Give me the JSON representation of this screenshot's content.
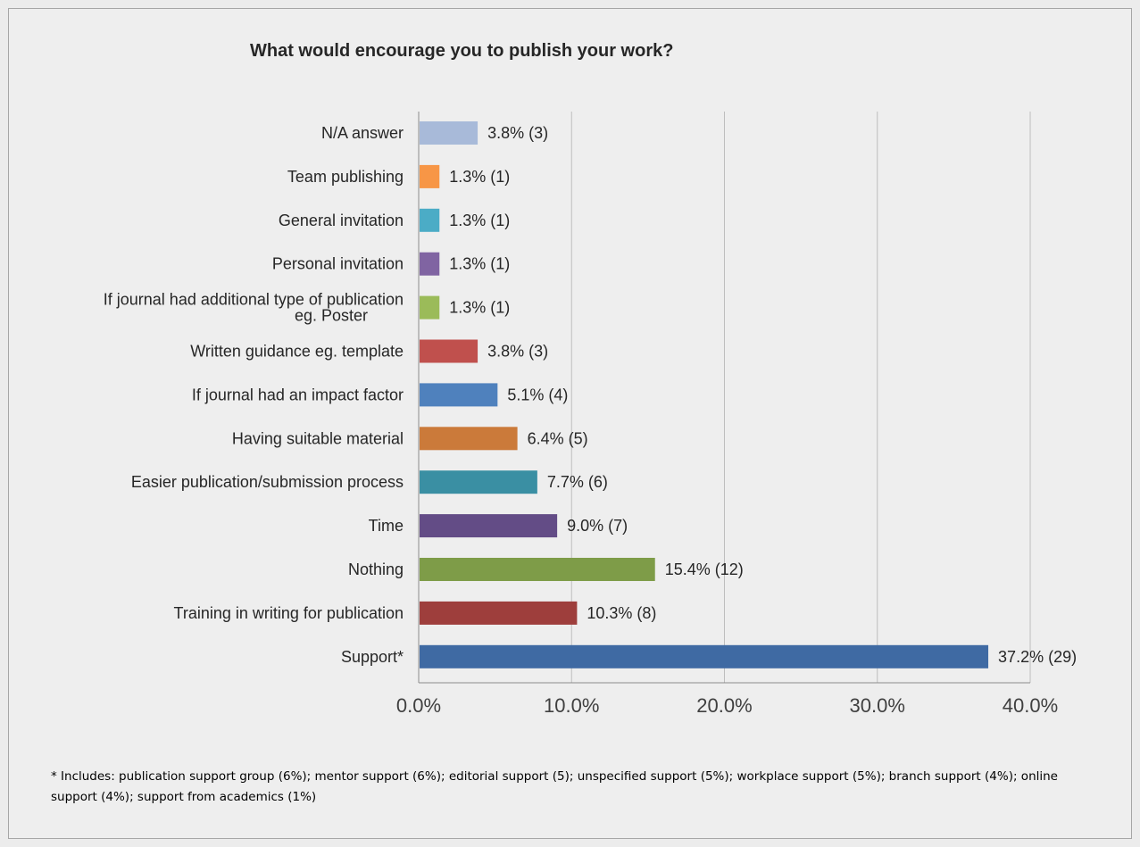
{
  "chart_data": {
    "type": "bar",
    "orientation": "horizontal",
    "title": "What would encourage you to publish your work?",
    "categories": [
      "N/A answer",
      "Team publishing",
      "General invitation",
      "Personal invitation",
      "If journal had additional type of publication eg. Poster",
      "Written guidance eg. template",
      "If journal had an impact factor",
      "Having suitable material",
      "Easier publication/submission process",
      "Time",
      "Nothing",
      "Training in writing for publication",
      "Support*"
    ],
    "values": [
      3.8,
      1.3,
      1.3,
      1.3,
      1.3,
      3.8,
      5.1,
      6.4,
      7.7,
      9.0,
      15.4,
      10.3,
      37.2
    ],
    "counts": [
      3,
      1,
      1,
      1,
      1,
      3,
      4,
      5,
      6,
      7,
      12,
      8,
      29
    ],
    "data_labels": [
      "3.8% (3)",
      "1.3% (1)",
      "1.3% (1)",
      "1.3% (1)",
      "1.3% (1)",
      "3.8% (3)",
      "5.1% (4)",
      "6.4% (5)",
      "7.7% (6)",
      "9.0% (7)",
      "15.4% (12)",
      "10.3% (8)",
      "37.2% (29)"
    ],
    "colors": [
      "#a8bad9",
      "#f79646",
      "#4bacc6",
      "#8064a2",
      "#9bbb59",
      "#c0504d",
      "#4f81bd",
      "#cb7a3a",
      "#3a8fa3",
      "#634c86",
      "#7e9c48",
      "#9e3e3c",
      "#3f6aa3"
    ],
    "xlim": [
      0,
      40
    ],
    "xticks": [
      "0.0%",
      "10.0%",
      "20.0%",
      "30.0%",
      "40.0%"
    ],
    "grid": true,
    "legend": false
  },
  "footnote": "* Includes: publication support group (6%); mentor support (6%); editorial support (5); unspecified support (5%); workplace support (5%); branch support (4%); online support (4%); support from academics (1%)"
}
